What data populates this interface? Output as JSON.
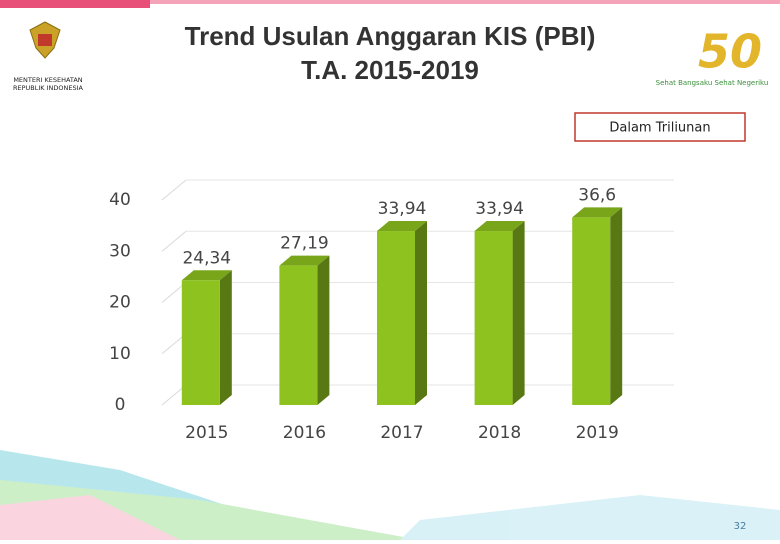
{
  "header": {
    "ministry": [
      "MENTERI KESEHATAN",
      "REPUBLIK INDONESIA"
    ],
    "logo_number": "50",
    "logo_slogan": "Sehat Bangsaku Sehat Negeriku"
  },
  "chart_data": {
    "type": "bar",
    "title": [
      "Trend Usulan Anggaran KIS (PBI)",
      "T.A. 2015-2019"
    ],
    "unit_note": "Dalam Triliunan",
    "categories": [
      "2015",
      "2016",
      "2017",
      "2018",
      "2019"
    ],
    "values": [
      24.34,
      27.19,
      33.94,
      33.94,
      36.6
    ],
    "value_labels": [
      "24,34",
      "27,19",
      "33,94",
      "33,94",
      "36,6"
    ],
    "color": "#8dc21f",
    "ylim": [
      0,
      40
    ],
    "yticks": [
      0,
      10,
      20,
      30,
      40
    ],
    "grid": true
  },
  "footer": {
    "page_number": "32"
  }
}
